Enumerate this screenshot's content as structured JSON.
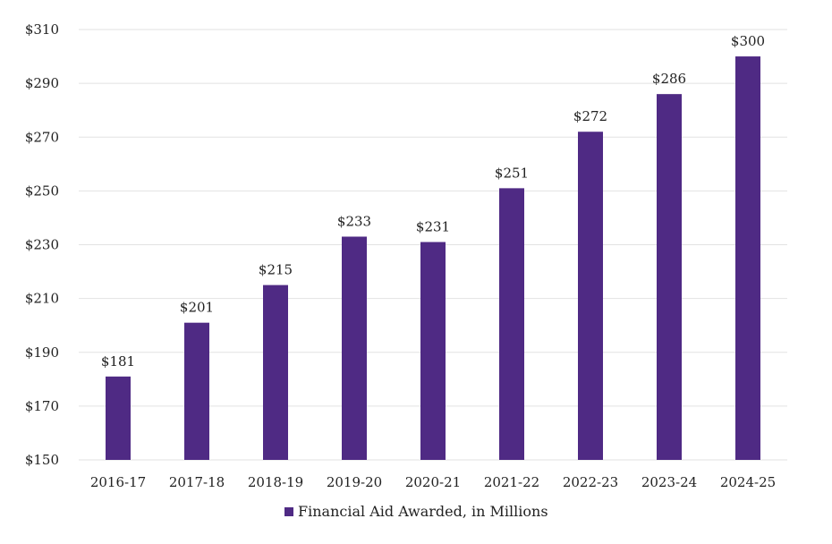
{
  "chart_data": {
    "type": "bar",
    "title": "",
    "xlabel": "",
    "ylabel": "",
    "categories": [
      "2016-17",
      "2017-18",
      "2018-19",
      "2019-20",
      "2020-21",
      "2021-22",
      "2022-23",
      "2023-24",
      "2024-25"
    ],
    "series": [
      {
        "name": "Financial Aid Awarded, in Millions",
        "values": [
          181,
          201,
          215,
          233,
          231,
          251,
          272,
          286,
          300
        ],
        "labels": [
          "$181",
          "$201",
          "$215",
          "$233",
          "$231",
          "$251",
          "$272",
          "$286",
          "$300"
        ],
        "color": "#4f2a84"
      }
    ],
    "ylim": [
      150,
      310
    ],
    "yticks": [
      150,
      170,
      190,
      210,
      230,
      250,
      270,
      290,
      310
    ],
    "ytick_labels": [
      "$150",
      "$170",
      "$190",
      "$210",
      "$230",
      "$250",
      "$270",
      "$290",
      "$310"
    ],
    "grid": true,
    "legend": "bottom"
  }
}
